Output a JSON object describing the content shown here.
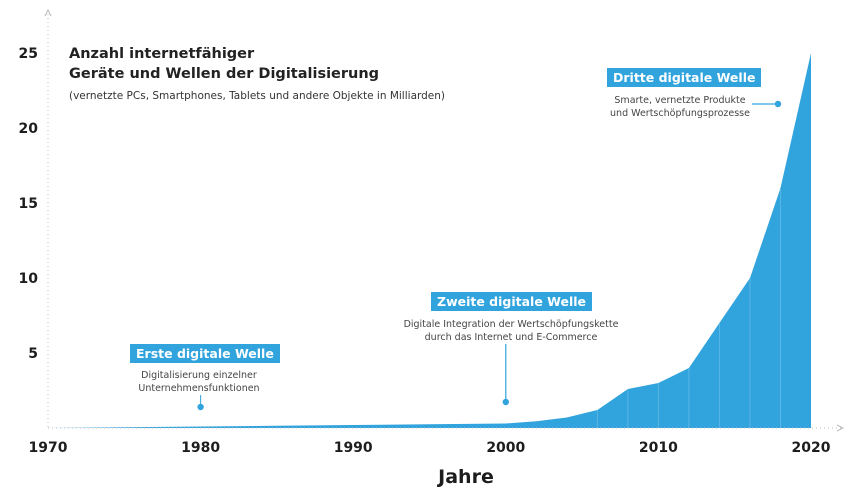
{
  "title_line1": "Anzahl internetfähiger",
  "title_line2": "Geräte und Wellen der Digitalisierung",
  "subtitle": "(vernetzte PCs, Smartphones, Tablets und andere Objekte in Milliarden)",
  "colors": {
    "area": "#31a3dd",
    "axis": "#bbbbbb",
    "label_bg": "#31a3dd"
  },
  "waves": [
    {
      "label": "Erste digitale Welle",
      "desc_line1": "Digitalisierung einzelner",
      "desc_line2": "Unternehmensfunktionen",
      "year": 1980
    },
    {
      "label": "Zweite digitale Welle",
      "desc_line1": "Digitale Integration der Wertschöpfungskette",
      "desc_line2": "durch das Internet und E-Commerce",
      "year": 2000
    },
    {
      "label": "Dritte digitale Welle",
      "desc_line1": "Smarte, vernetzte Produkte",
      "desc_line2": "und Wertschöpfungsprozesse"
    }
  ],
  "chart_data": {
    "type": "area",
    "x": [
      1970,
      1975,
      1980,
      1985,
      1990,
      1995,
      2000,
      2002,
      2004,
      2006,
      2008,
      2010,
      2012,
      2014,
      2016,
      2018,
      2020
    ],
    "values": [
      0.0,
      0.05,
      0.1,
      0.15,
      0.2,
      0.25,
      0.3,
      0.45,
      0.7,
      1.2,
      2.6,
      3.0,
      4.0,
      7.0,
      10.0,
      16.0,
      25.0
    ],
    "xlabel": "Jahre",
    "x_ticks": [
      "1970",
      "1980",
      "1990",
      "2000",
      "2010",
      "2020"
    ],
    "y_ticks": [
      "5",
      "10",
      "15",
      "20",
      "25"
    ],
    "xlim": [
      1970,
      2020
    ],
    "ylim": [
      0,
      25
    ],
    "grid": false
  }
}
